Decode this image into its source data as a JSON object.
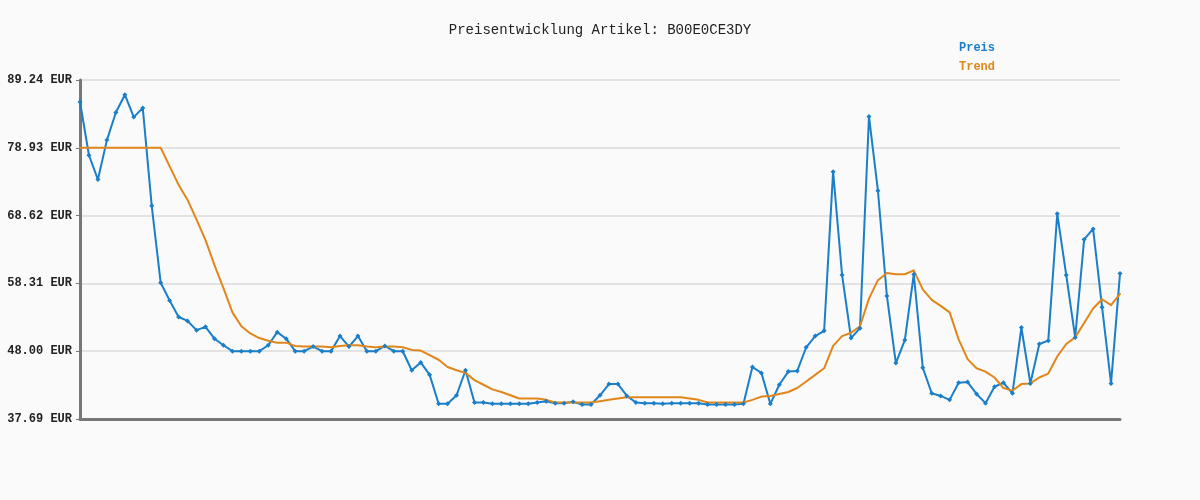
{
  "chart_data": {
    "type": "line",
    "title": "Preisentwicklung Artikel: B00E0CE3DY",
    "categories": [
      null,
      null,
      null,
      null,
      null,
      null,
      null,
      null,
      null,
      null,
      null,
      null,
      null,
      null,
      null,
      null,
      null,
      null,
      null,
      null,
      null,
      null,
      null,
      null,
      null,
      null,
      null,
      null,
      null,
      null,
      null,
      null,
      null,
      null,
      null,
      null,
      null,
      null,
      null,
      null,
      null,
      null,
      null,
      null,
      null,
      null,
      null,
      null,
      null,
      null,
      null,
      null,
      null,
      null,
      null,
      null,
      null,
      null,
      null,
      null,
      null,
      null,
      null,
      null,
      null,
      null,
      null,
      null,
      null,
      null,
      null,
      null,
      null,
      null,
      null,
      null,
      null,
      null,
      null,
      null,
      null,
      null,
      null,
      null,
      null,
      null,
      null,
      null,
      null,
      null,
      null,
      null,
      null,
      null,
      null,
      null,
      null,
      null,
      null,
      null,
      null,
      null,
      null,
      null,
      null,
      null,
      null,
      null,
      null,
      null,
      null,
      null,
      null,
      null,
      null,
      null,
      null
    ],
    "series": [
      {
        "name": "Preis",
        "color": "#1a7fc8",
        "marker": "diamond",
        "values": [
          85.9,
          77.8,
          74.1,
          80.1,
          84.3,
          87.0,
          83.6,
          85.0,
          70.1,
          58.4,
          55.7,
          53.2,
          52.6,
          51.2,
          51.7,
          49.9,
          48.9,
          48.0,
          48.0,
          48.0,
          48.0,
          48.9,
          50.9,
          49.9,
          48.0,
          48.0,
          48.7,
          48.0,
          48.0,
          50.3,
          48.7,
          50.3,
          48.0,
          48.0,
          48.8,
          48.0,
          48.0,
          45.1,
          46.3,
          44.4,
          40.0,
          40.0,
          41.3,
          45.1,
          40.2,
          40.2,
          40.0,
          40.0,
          40.0,
          40.0,
          40.0,
          40.2,
          40.4,
          40.1,
          40.1,
          40.3,
          39.9,
          39.9,
          41.3,
          43.0,
          43.0,
          41.2,
          40.2,
          40.1,
          40.1,
          40.0,
          40.1,
          40.1,
          40.1,
          40.1,
          39.9,
          39.9,
          39.9,
          39.9,
          40.0,
          45.6,
          44.7,
          40.0,
          42.9,
          44.9,
          45.0,
          48.6,
          50.3,
          51.1,
          75.3,
          59.6,
          50.0,
          51.5,
          83.7,
          72.4,
          56.4,
          46.2,
          49.7,
          59.7,
          45.5,
          41.6,
          41.2,
          40.6,
          43.2,
          43.3,
          41.5,
          40.1,
          42.6,
          43.2,
          41.6,
          51.6,
          43.1,
          49.1,
          49.6,
          68.9,
          59.6,
          50.1,
          65.0,
          66.6,
          54.7,
          43.1,
          59.8
        ]
      },
      {
        "name": "Trend",
        "color": "#e0861a",
        "marker": "none",
        "values": [
          78.93,
          78.93,
          78.93,
          78.93,
          78.93,
          78.93,
          78.93,
          78.93,
          78.93,
          78.93,
          76.1,
          73.3,
          71.0,
          68.0,
          64.9,
          61.1,
          57.6,
          53.9,
          51.8,
          50.7,
          50.0,
          49.6,
          49.3,
          49.3,
          48.8,
          48.7,
          48.7,
          48.7,
          48.6,
          48.8,
          48.9,
          48.9,
          48.7,
          48.6,
          48.7,
          48.7,
          48.6,
          48.2,
          48.1,
          47.4,
          46.7,
          45.6,
          45.1,
          44.7,
          43.6,
          42.9,
          42.2,
          41.8,
          41.3,
          40.8,
          40.8,
          40.8,
          40.6,
          40.2,
          40.2,
          40.2,
          40.2,
          40.2,
          40.4,
          40.6,
          40.8,
          41.0,
          41.0,
          41.0,
          41.0,
          41.0,
          41.0,
          41.0,
          40.8,
          40.6,
          40.2,
          40.2,
          40.2,
          40.2,
          40.2,
          40.6,
          41.1,
          41.2,
          41.5,
          41.8,
          42.4,
          43.4,
          44.4,
          45.4,
          48.8,
          50.3,
          50.8,
          51.8,
          56.0,
          58.8,
          59.9,
          59.7,
          59.7,
          60.3,
          57.4,
          55.8,
          54.9,
          53.9,
          49.8,
          46.8,
          45.4,
          44.9,
          44.0,
          42.4,
          42.0,
          43.0,
          43.1,
          44.0,
          44.6,
          47.2,
          49.1,
          50.1,
          52.3,
          54.5,
          55.9,
          55.0,
          56.7
        ]
      }
    ],
    "ylim": [
      37.69,
      89.24
    ],
    "yticks": [
      {
        "value": 37.69,
        "label": "37.69 EUR"
      },
      {
        "value": 48.0,
        "label": "48.00 EUR"
      },
      {
        "value": 58.31,
        "label": "58.31 EUR"
      },
      {
        "value": 68.62,
        "label": "68.62 EUR"
      },
      {
        "value": 78.93,
        "label": "78.93 EUR"
      },
      {
        "value": 89.24,
        "label": "89.24 EUR"
      }
    ],
    "grid": "y",
    "legend": "top right",
    "tick_labels": "y",
    "line_style": "solid"
  }
}
